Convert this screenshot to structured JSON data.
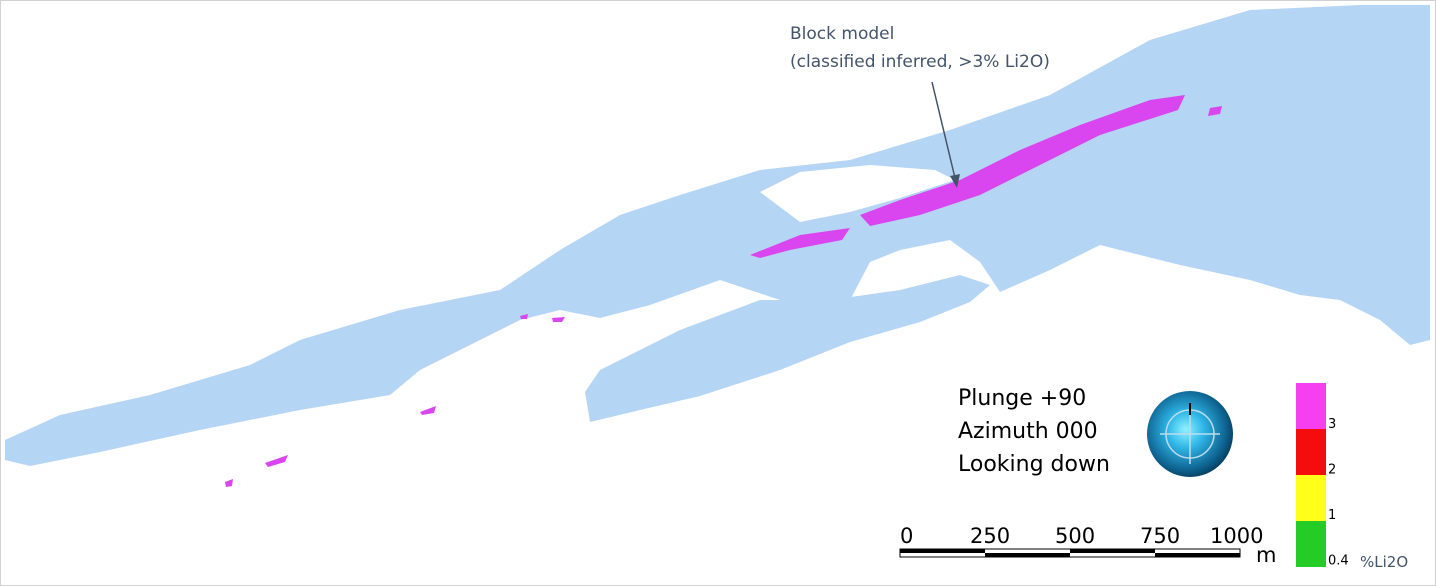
{
  "annotation": {
    "title": "Block model",
    "subtitle": "(classified inferred, >3% Li2O)"
  },
  "view": {
    "lines": [
      "Plunge +90",
      "Azimuth 000",
      "Looking down"
    ]
  },
  "scale_bar": {
    "ticks": [
      0,
      250,
      500,
      750,
      1000
    ],
    "unit": "m"
  },
  "legend": {
    "stops": [
      3,
      2,
      1,
      0.4
    ],
    "unit": "%Li2O"
  }
}
